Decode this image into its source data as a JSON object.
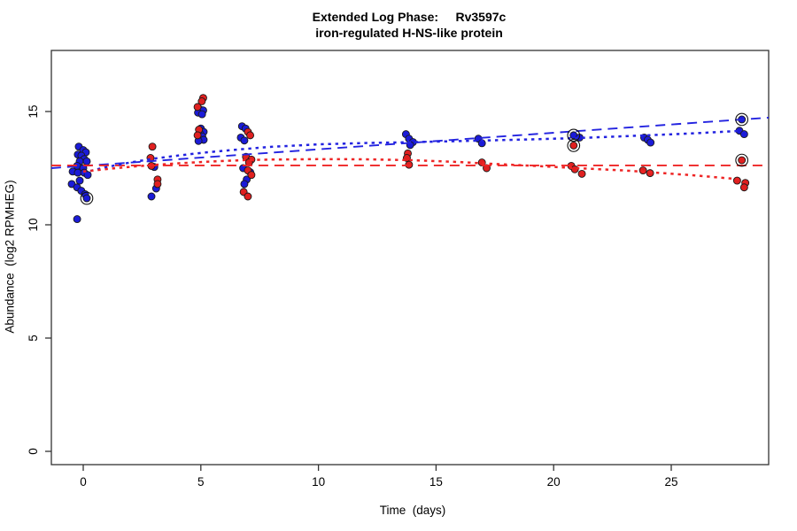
{
  "title": {
    "line1": "Extended Log Phase:     Rv3597c",
    "line2": "iron-regulated H-NS-like protein"
  },
  "axes": {
    "x_label": "Time  (days)",
    "y_label": "Abundance  (log2 RPMHEG)"
  },
  "chart_data": {
    "type": "scatter",
    "title": "Extended Log Phase: Rv3597c",
    "subtitle": "iron-regulated H-NS-like protein",
    "xlabel": "Time (days)",
    "ylabel": "Abundance (log2 RPMHEG)",
    "xlim": [
      -1.4,
      29.1
    ],
    "ylim": [
      -0.6,
      17.7
    ],
    "x_ticks": [
      0,
      5,
      10,
      15,
      20,
      25
    ],
    "y_ticks": [
      0,
      5,
      10,
      15
    ],
    "grid": false,
    "legend": "none",
    "colors": {
      "blue": "#1b1bd8",
      "red": "#e02020",
      "point_outline": "#1a1a1a",
      "blue_line": "#2323e0",
      "red_line": "#ee2525",
      "ring": "#111111",
      "axis": "#333333"
    },
    "series": [
      {
        "name": "blue",
        "color": "#1b1bd8",
        "points": [
          [
            -0.19,
            13.45
          ],
          [
            0.0,
            13.3
          ],
          [
            0.11,
            13.2
          ],
          [
            -0.23,
            13.1
          ],
          [
            -0.08,
            13.05
          ],
          [
            0.04,
            12.9
          ],
          [
            -0.15,
            12.8
          ],
          [
            0.15,
            12.8
          ],
          [
            -0.26,
            12.6
          ],
          [
            0.0,
            12.5
          ],
          [
            -0.45,
            12.35
          ],
          [
            -0.23,
            12.3
          ],
          [
            0.04,
            12.3
          ],
          [
            0.19,
            12.2
          ],
          [
            -0.15,
            11.95
          ],
          [
            -0.49,
            11.8
          ],
          [
            -0.26,
            11.65
          ],
          [
            -0.08,
            11.5
          ],
          [
            0.08,
            11.35
          ],
          [
            0.15,
            11.17
          ],
          [
            -0.26,
            10.25
          ],
          [
            3.02,
            12.55
          ],
          [
            3.1,
            11.6
          ],
          [
            2.9,
            11.25
          ],
          [
            4.95,
            15.1
          ],
          [
            5.1,
            15.05
          ],
          [
            4.88,
            14.95
          ],
          [
            5.05,
            14.88
          ],
          [
            5.0,
            14.25
          ],
          [
            5.12,
            14.1
          ],
          [
            4.95,
            14.05
          ],
          [
            5.06,
            13.9
          ],
          [
            5.12,
            13.75
          ],
          [
            4.9,
            13.7
          ],
          [
            6.75,
            14.35
          ],
          [
            6.9,
            14.25
          ],
          [
            6.7,
            13.85
          ],
          [
            6.85,
            13.72
          ],
          [
            6.8,
            12.5
          ],
          [
            7.1,
            12.32
          ],
          [
            6.95,
            12.0
          ],
          [
            6.85,
            11.8
          ],
          [
            13.72,
            14.0
          ],
          [
            13.85,
            13.8
          ],
          [
            14.02,
            13.65
          ],
          [
            13.9,
            13.52
          ],
          [
            16.8,
            13.8
          ],
          [
            16.95,
            13.6
          ],
          [
            20.85,
            13.95
          ],
          [
            21.1,
            13.85
          ],
          [
            23.85,
            13.85
          ],
          [
            24.0,
            13.75
          ],
          [
            24.12,
            13.63
          ],
          [
            28.0,
            14.65
          ],
          [
            27.9,
            14.15
          ],
          [
            28.1,
            14.0
          ]
        ]
      },
      {
        "name": "red",
        "color": "#e02020",
        "points": [
          [
            2.94,
            13.45
          ],
          [
            2.86,
            12.95
          ],
          [
            2.9,
            12.6
          ],
          [
            3.16,
            12.0
          ],
          [
            3.16,
            11.8
          ],
          [
            5.1,
            15.6
          ],
          [
            5.04,
            15.45
          ],
          [
            4.86,
            15.2
          ],
          [
            4.92,
            14.2
          ],
          [
            4.86,
            13.95
          ],
          [
            7.0,
            14.1
          ],
          [
            7.1,
            13.95
          ],
          [
            6.92,
            13.0
          ],
          [
            7.15,
            12.88
          ],
          [
            7.05,
            12.75
          ],
          [
            7.0,
            12.4
          ],
          [
            7.15,
            12.2
          ],
          [
            6.82,
            11.45
          ],
          [
            7.0,
            11.25
          ],
          [
            13.8,
            13.15
          ],
          [
            13.76,
            12.95
          ],
          [
            13.85,
            12.65
          ],
          [
            16.95,
            12.75
          ],
          [
            17.15,
            12.5
          ],
          [
            20.85,
            13.5
          ],
          [
            20.75,
            12.6
          ],
          [
            20.9,
            12.45
          ],
          [
            21.2,
            12.25
          ],
          [
            23.8,
            12.4
          ],
          [
            24.1,
            12.28
          ],
          [
            28.0,
            12.85
          ],
          [
            27.8,
            11.95
          ],
          [
            28.15,
            11.85
          ],
          [
            28.1,
            11.65
          ]
        ]
      }
    ],
    "highlighted_points": [
      [
        0.15,
        11.17
      ],
      [
        20.85,
        13.95
      ],
      [
        20.85,
        13.5
      ],
      [
        28.0,
        14.65
      ],
      [
        28.0,
        12.85
      ]
    ],
    "trend_lines": [
      {
        "name": "blue-linear-fit",
        "color": "#2323e0",
        "style": "dashed",
        "points": [
          [
            -1.36,
            12.5
          ],
          [
            29.14,
            14.73
          ]
        ]
      },
      {
        "name": "red-linear-fit",
        "color": "#ee2525",
        "style": "dashed",
        "points": [
          [
            -1.36,
            12.62
          ],
          [
            29.14,
            12.62
          ]
        ]
      },
      {
        "name": "blue-smooth-fit",
        "color": "#2323e0",
        "style": "dotted",
        "points": [
          [
            0,
            12.3
          ],
          [
            1,
            12.55
          ],
          [
            2,
            12.75
          ],
          [
            3,
            12.92
          ],
          [
            4,
            13.05
          ],
          [
            5,
            13.17
          ],
          [
            6,
            13.27
          ],
          [
            7,
            13.36
          ],
          [
            8,
            13.44
          ],
          [
            10,
            13.55
          ],
          [
            12,
            13.61
          ],
          [
            14,
            13.65
          ],
          [
            17,
            13.72
          ],
          [
            19,
            13.77
          ],
          [
            21,
            13.83
          ],
          [
            24,
            13.95
          ],
          [
            26,
            14.04
          ],
          [
            28,
            14.15
          ]
        ]
      },
      {
        "name": "red-smooth-fit",
        "color": "#ee2525",
        "style": "dotted",
        "points": [
          [
            0,
            12.35
          ],
          [
            1,
            12.46
          ],
          [
            2,
            12.56
          ],
          [
            3,
            12.64
          ],
          [
            4,
            12.71
          ],
          [
            5,
            12.77
          ],
          [
            6,
            12.82
          ],
          [
            7,
            12.86
          ],
          [
            8,
            12.88
          ],
          [
            10,
            12.9
          ],
          [
            12,
            12.89
          ],
          [
            14,
            12.85
          ],
          [
            16,
            12.77
          ],
          [
            17,
            12.71
          ],
          [
            19,
            12.61
          ],
          [
            21,
            12.5
          ],
          [
            23,
            12.4
          ],
          [
            24,
            12.33
          ],
          [
            26,
            12.18
          ],
          [
            28,
            12.0
          ]
        ]
      }
    ]
  }
}
